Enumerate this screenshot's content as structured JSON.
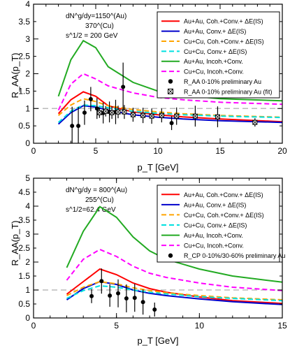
{
  "chart_data": [
    {
      "type": "line",
      "xlabel": "p_T [GeV]",
      "ylabel": "R_AA(p_T)",
      "xlim": [
        0,
        20
      ],
      "ylim": [
        0,
        4
      ],
      "xticks": [
        0,
        5,
        10,
        15,
        20
      ],
      "yticks": [
        0,
        0.5,
        1,
        1.5,
        2,
        2.5,
        3,
        3.5,
        4
      ],
      "reference_line": 1,
      "legend_position": "top-right",
      "annotations": [
        {
          "text": "dN^g/dy=1150^(Au)",
          "id": "dndy-au"
        },
        {
          "text": "370^(Cu)",
          "id": "dndy-cu"
        },
        {
          "text": "s^1/2 = 200 GeV",
          "id": "energy"
        }
      ],
      "series": [
        {
          "name": "Au+Au, Coh.+Conv.+ ΔE(IS)",
          "color": "#ff0000",
          "dash": "solid",
          "x": [
            2,
            3,
            4,
            5,
            6,
            8,
            10,
            12,
            15,
            20
          ],
          "y": [
            0.85,
            1.25,
            1.48,
            1.35,
            1.08,
            0.9,
            0.82,
            0.76,
            0.7,
            0.62
          ]
        },
        {
          "name": "Au+Au, Conv.+ ΔE(IS)",
          "color": "#0000cc",
          "dash": "solid",
          "x": [
            2,
            3,
            4,
            5,
            6,
            8,
            10,
            12,
            15,
            20
          ],
          "y": [
            0.55,
            0.88,
            1.08,
            1.04,
            0.95,
            0.82,
            0.75,
            0.7,
            0.65,
            0.6
          ]
        },
        {
          "name": "Cu+Cu, Coh.+Conv.+ ΔE(IS)",
          "color": "#ffa500",
          "dash": "dash",
          "x": [
            2,
            3,
            4,
            5,
            6,
            8,
            10,
            12,
            15,
            20
          ],
          "y": [
            0.8,
            1.1,
            1.28,
            1.2,
            1.08,
            0.97,
            0.9,
            0.85,
            0.8,
            0.75
          ]
        },
        {
          "name": "Cu+Cu, Conv.+ ΔE(IS)",
          "color": "#00e0e0",
          "dash": "dash",
          "x": [
            2,
            3,
            4,
            5,
            6,
            8,
            10,
            12,
            15,
            20
          ],
          "y": [
            0.6,
            0.92,
            1.1,
            1.08,
            1.02,
            0.92,
            0.86,
            0.82,
            0.78,
            0.74
          ]
        },
        {
          "name": "Au+Au, Incoh.+Conv.",
          "color": "#22aa22",
          "dash": "solid",
          "x": [
            2,
            3,
            4,
            5,
            6,
            8,
            10,
            12,
            15,
            20
          ],
          "y": [
            1.35,
            2.4,
            2.95,
            2.75,
            2.2,
            1.75,
            1.5,
            1.38,
            1.28,
            1.22
          ]
        },
        {
          "name": "Cu+Cu, Incoh.+Conv.",
          "color": "#ff00ff",
          "dash": "dash",
          "x": [
            2,
            3,
            4,
            5,
            6,
            8,
            10,
            12,
            15,
            20
          ],
          "y": [
            0.95,
            1.7,
            2.0,
            1.85,
            1.65,
            1.45,
            1.32,
            1.25,
            1.18,
            1.12
          ]
        }
      ],
      "points": [
        {
          "name": "R_AA 0-10% preliminary Au",
          "marker": "circle",
          "x": [
            3.1,
            3.6,
            4.1,
            4.6,
            5.1,
            5.6,
            6.1,
            6.6,
            7.2,
            11.1
          ],
          "y": [
            0.5,
            0.5,
            0.88,
            1.27,
            1.0,
            0.87,
            0.9,
            0.9,
            1.62,
            0.58
          ],
          "err": [
            0.55,
            0.55,
            0.35,
            0.35,
            0.3,
            0.3,
            0.3,
            0.35,
            0.7,
            0.2
          ]
        },
        {
          "name": "R_AA 0-10% preliminary Au (fit)",
          "marker": "box",
          "x": [
            5.3,
            5.8,
            6.3,
            6.8,
            7.3,
            8.0,
            8.8,
            9.5,
            10.3,
            11.5,
            13.0,
            14.8,
            17.8
          ],
          "y": [
            0.88,
            0.92,
            0.88,
            0.9,
            0.9,
            0.82,
            0.8,
            0.78,
            0.8,
            0.78,
            0.78,
            0.76,
            0.6
          ],
          "err": [
            0.15,
            0.15,
            0.18,
            0.18,
            0.2,
            0.2,
            0.22,
            0.22,
            0.2,
            0.25,
            0.3,
            0.3,
            0.12
          ]
        }
      ]
    },
    {
      "type": "line",
      "xlabel": "p_T [GeV]",
      "ylabel": "R_AA(p_T)",
      "xlim": [
        0,
        15
      ],
      "ylim": [
        0,
        5
      ],
      "xticks": [
        0,
        5,
        10,
        15
      ],
      "yticks": [
        0,
        0.5,
        1,
        1.5,
        2,
        2.5,
        3,
        3.5,
        4,
        4.5,
        5
      ],
      "reference_line": 1,
      "legend_position": "top-right",
      "annotations": [
        {
          "text": "dN^g/dy = 800^(Au)",
          "id": "dndy-au"
        },
        {
          "text": "255^(Cu)",
          "id": "dndy-cu"
        },
        {
          "text": "s^1/2=62.4 GeV",
          "id": "energy"
        }
      ],
      "series": [
        {
          "name": "Au+Au, Coh.+Conv.+ ΔE(IS)",
          "color": "#ff0000",
          "dash": "solid",
          "x": [
            2,
            3,
            4,
            5,
            6,
            7,
            8,
            10,
            12,
            15
          ],
          "y": [
            0.85,
            1.3,
            1.75,
            1.55,
            1.25,
            1.05,
            0.92,
            0.75,
            0.62,
            0.52
          ]
        },
        {
          "name": "Au+Au, Conv.+ ΔE(IS)",
          "color": "#0000cc",
          "dash": "solid",
          "x": [
            2,
            3,
            4,
            5,
            6,
            7,
            8,
            10,
            12,
            15
          ],
          "y": [
            0.65,
            1.05,
            1.3,
            1.2,
            1.0,
            0.88,
            0.8,
            0.68,
            0.58,
            0.48
          ]
        },
        {
          "name": "Cu+Cu, Coh.+Conv.+ ΔE(IS)",
          "color": "#ffa500",
          "dash": "dash",
          "x": [
            2,
            3,
            4,
            5,
            6,
            7,
            8,
            10,
            12,
            15
          ],
          "y": [
            0.8,
            1.1,
            1.3,
            1.22,
            1.08,
            0.98,
            0.9,
            0.8,
            0.72,
            0.65
          ]
        },
        {
          "name": "Cu+Cu, Conv.+ ΔE(IS)",
          "color": "#00e0e0",
          "dash": "dash",
          "x": [
            2,
            3,
            4,
            5,
            6,
            7,
            8,
            10,
            12,
            15
          ],
          "y": [
            0.7,
            0.98,
            1.15,
            1.1,
            1.0,
            0.92,
            0.86,
            0.76,
            0.7,
            0.62
          ]
        },
        {
          "name": "Au+Au, Incoh.+Conv.",
          "color": "#22aa22",
          "dash": "solid",
          "x": [
            2,
            3,
            4,
            5,
            6,
            7,
            8,
            10,
            12,
            15
          ],
          "y": [
            1.8,
            3.1,
            3.98,
            3.6,
            2.9,
            2.4,
            2.1,
            1.75,
            1.5,
            1.28
          ]
        },
        {
          "name": "Cu+Cu, Incoh.+Conv.",
          "color": "#ff00ff",
          "dash": "dash",
          "x": [
            2,
            3,
            4,
            5,
            6,
            7,
            8,
            10,
            12,
            15
          ],
          "y": [
            1.35,
            2.1,
            2.45,
            2.2,
            1.85,
            1.6,
            1.45,
            1.25,
            1.1,
            0.98
          ]
        }
      ],
      "points": [
        {
          "name": "R_CP 0-10%/30-60% preliminary Au",
          "marker": "circle",
          "x": [
            3.5,
            4.1,
            4.6,
            5.1,
            5.6,
            6.1,
            6.6,
            7.3
          ],
          "y": [
            0.78,
            1.32,
            0.8,
            0.88,
            0.7,
            0.72,
            0.57,
            0.3
          ],
          "err": [
            0.25,
            0.45,
            0.4,
            0.5,
            0.5,
            0.5,
            0.45,
            0.25
          ]
        }
      ]
    }
  ]
}
